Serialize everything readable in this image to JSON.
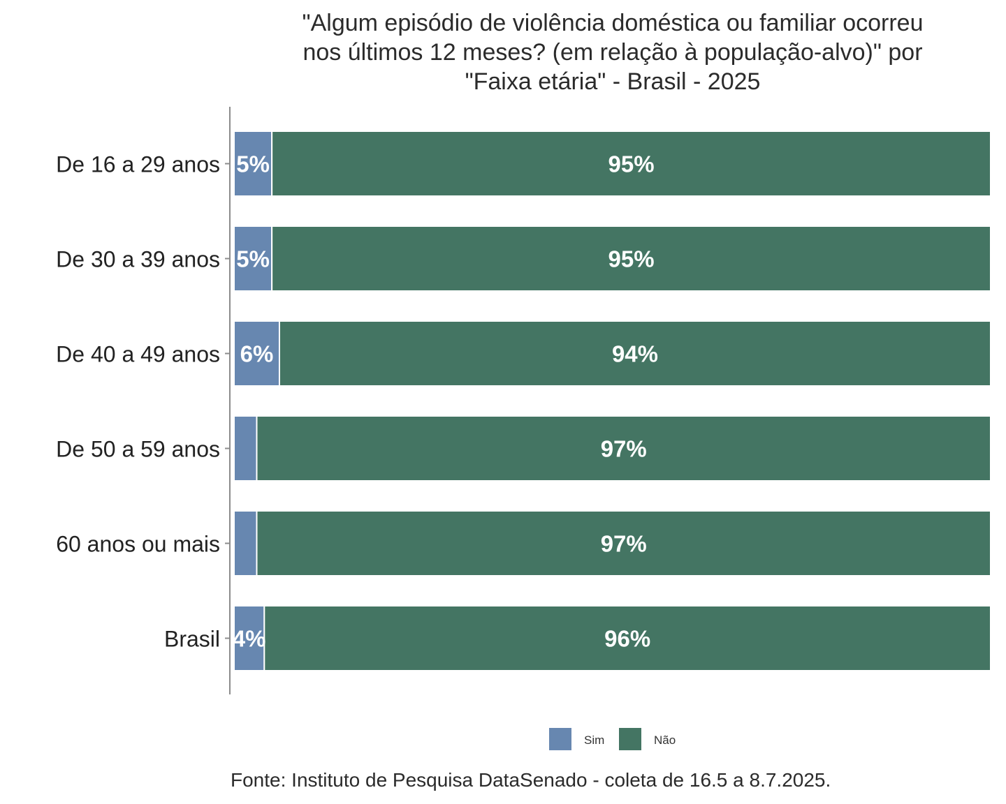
{
  "chart_data": {
    "type": "bar",
    "orientation": "horizontal",
    "stacked": true,
    "normalized": true,
    "title": "\"Algum episódio de violência doméstica ou familiar ocorreu\nnos últimos 12 meses? (em relação à população-alvo)\" por\n\"Faixa etária\" - Brasil - 2025",
    "xlabel": "",
    "ylabel": "",
    "xlim": [
      0,
      100
    ],
    "grid": false,
    "legend_position": "bottom",
    "categories": [
      "De 16 a 29 anos",
      "De 30 a 39 anos",
      "De 40 a 49 anos",
      "De 50 a 59 anos",
      "60 anos ou mais",
      "Brasil"
    ],
    "series": [
      {
        "name": "Sim",
        "color": "#6787b0",
        "values": [
          5,
          5,
          6,
          3,
          3,
          4
        ],
        "labels": [
          "5%",
          "5%",
          "6%",
          "",
          "",
          "4%"
        ]
      },
      {
        "name": "Não",
        "color": "#447563",
        "values": [
          95,
          95,
          94,
          97,
          97,
          96
        ],
        "labels": [
          "95%",
          "95%",
          "94%",
          "97%",
          "97%",
          "96%"
        ]
      }
    ],
    "caption": "Fonte: Instituto de Pesquisa DataSenado - coleta de 16.5 a 8.7.2025."
  },
  "colors": {
    "axis": "#8c8c8c",
    "text": "#2b2b2b"
  }
}
